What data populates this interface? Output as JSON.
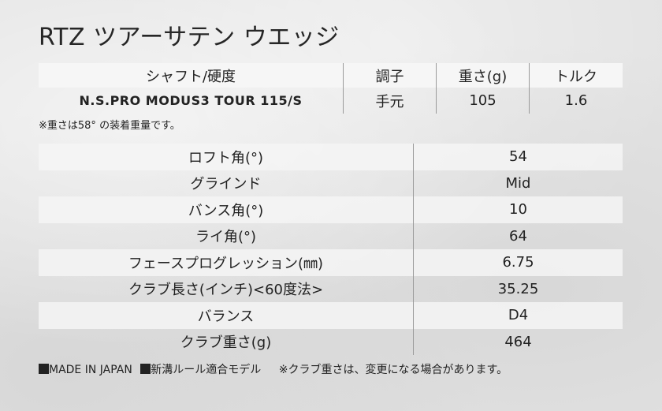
{
  "title": "RTZ ツアーサテン ウエッジ",
  "spec": {
    "headers": [
      "シャフト/硬度",
      "調子",
      "重さ(g)",
      "トルク"
    ],
    "row": [
      "N.S.PRO MODUS3 TOUR 115/S",
      "手元",
      "105",
      "1.6"
    ],
    "note": "※重さは58° の装着重量です。"
  },
  "params": [
    {
      "label": "ロフト角(°)",
      "value": "54"
    },
    {
      "label": "グラインド",
      "value": "Mid"
    },
    {
      "label": "バンス角(°)",
      "value": "10"
    },
    {
      "label": "ライ角(°)",
      "value": "64"
    },
    {
      "label": "フェースプログレッション(㎜)",
      "value": "6.75"
    },
    {
      "label": "クラブ長さ(インチ)<60度法>",
      "value": "35.25"
    },
    {
      "label": "バランス",
      "value": "D4"
    },
    {
      "label": "クラブ重さ(g)",
      "value": "464"
    }
  ],
  "footer": {
    "made_in": "MADE IN JAPAN",
    "rule": "新溝ルール適合モデル",
    "note": "※クラブ重さは、変更になる場合があります。"
  }
}
